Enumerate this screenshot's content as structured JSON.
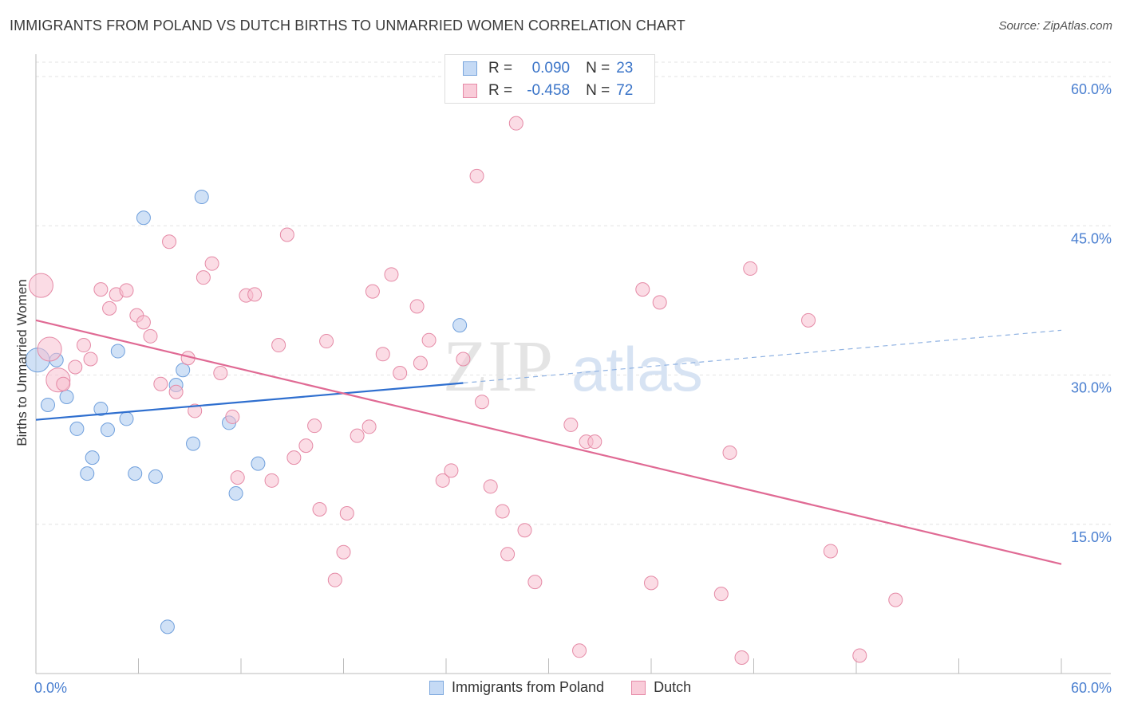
{
  "header": {
    "title": "IMMIGRANTS FROM POLAND VS DUTCH BIRTHS TO UNMARRIED WOMEN CORRELATION CHART",
    "source": "Source: ZipAtlas.com"
  },
  "stats": {
    "r_label": "R =",
    "n_label": "N =",
    "rows": [
      {
        "r": "0.090",
        "n": "23"
      },
      {
        "r": "-0.458",
        "n": "72"
      }
    ]
  },
  "watermark": {
    "part1": "ZIP",
    "part2": "atlas"
  },
  "chart_data": {
    "type": "scatter",
    "title": "IMMIGRANTS FROM POLAND VS DUTCH BIRTHS TO UNMARRIED WOMEN CORRELATION CHART",
    "xlabel": "",
    "ylabel": "Births to Unmarried Women",
    "xlim": [
      0,
      60
    ],
    "ylim": [
      0,
      60
    ],
    "x_tick_labels": [
      "0.0%",
      "60.0%"
    ],
    "y_ticks": [
      15,
      30,
      45,
      60
    ],
    "y_tick_labels": [
      "15.0%",
      "30.0%",
      "45.0%",
      "60.0%"
    ],
    "grid": true,
    "legend_position": "bottom",
    "series": [
      {
        "name": "Immigrants from Poland",
        "color": "#a9c8ef",
        "stroke": "#6f9fdc",
        "line_color": "#2f6fcf",
        "trend": {
          "x": [
            0,
            25
          ],
          "y": [
            25.5,
            29.2
          ],
          "dashed_to_x": 60,
          "dashed_y": 34.5
        },
        "points": [
          {
            "x": 0.1,
            "y": 31.5,
            "big": true
          },
          {
            "x": 1.2,
            "y": 31.5
          },
          {
            "x": 0.7,
            "y": 27.0
          },
          {
            "x": 1.8,
            "y": 27.8
          },
          {
            "x": 2.4,
            "y": 24.6
          },
          {
            "x": 3.0,
            "y": 20.1
          },
          {
            "x": 3.3,
            "y": 21.7
          },
          {
            "x": 3.8,
            "y": 26.6
          },
          {
            "x": 4.2,
            "y": 24.5
          },
          {
            "x": 4.8,
            "y": 32.4
          },
          {
            "x": 5.3,
            "y": 25.6
          },
          {
            "x": 5.8,
            "y": 20.1
          },
          {
            "x": 6.3,
            "y": 45.8
          },
          {
            "x": 7.0,
            "y": 19.8
          },
          {
            "x": 8.2,
            "y": 29.0
          },
          {
            "x": 8.6,
            "y": 30.5
          },
          {
            "x": 9.2,
            "y": 23.1
          },
          {
            "x": 9.7,
            "y": 47.9
          },
          {
            "x": 11.3,
            "y": 25.2
          },
          {
            "x": 11.7,
            "y": 18.1
          },
          {
            "x": 13.0,
            "y": 21.1
          },
          {
            "x": 7.7,
            "y": 4.7
          },
          {
            "x": 24.8,
            "y": 35.0
          }
        ]
      },
      {
        "name": "Dutch",
        "color": "#f7c0d0",
        "stroke": "#e58aa6",
        "line_color": "#e06a94",
        "trend": {
          "x": [
            0,
            60
          ],
          "y": [
            35.5,
            11.0
          ]
        },
        "points": [
          {
            "x": 0.3,
            "y": 39.0,
            "big": true
          },
          {
            "x": 0.8,
            "y": 32.6,
            "big": true
          },
          {
            "x": 1.3,
            "y": 29.5,
            "big": true
          },
          {
            "x": 1.6,
            "y": 29.1
          },
          {
            "x": 2.3,
            "y": 30.8
          },
          {
            "x": 2.8,
            "y": 33.0
          },
          {
            "x": 3.2,
            "y": 31.6
          },
          {
            "x": 3.8,
            "y": 38.6
          },
          {
            "x": 4.3,
            "y": 36.7
          },
          {
            "x": 4.7,
            "y": 38.1
          },
          {
            "x": 5.3,
            "y": 38.5
          },
          {
            "x": 5.9,
            "y": 36.0
          },
          {
            "x": 6.3,
            "y": 35.3
          },
          {
            "x": 6.7,
            "y": 33.9
          },
          {
            "x": 7.3,
            "y": 29.1
          },
          {
            "x": 7.8,
            "y": 43.4
          },
          {
            "x": 8.2,
            "y": 28.3
          },
          {
            "x": 8.9,
            "y": 31.7
          },
          {
            "x": 9.3,
            "y": 26.4
          },
          {
            "x": 9.8,
            "y": 39.8
          },
          {
            "x": 10.3,
            "y": 41.2
          },
          {
            "x": 10.8,
            "y": 30.2
          },
          {
            "x": 11.5,
            "y": 25.8
          },
          {
            "x": 11.8,
            "y": 19.7
          },
          {
            "x": 12.3,
            "y": 38.0
          },
          {
            "x": 12.8,
            "y": 38.1
          },
          {
            "x": 13.8,
            "y": 19.4
          },
          {
            "x": 14.2,
            "y": 33.0
          },
          {
            "x": 14.7,
            "y": 44.1
          },
          {
            "x": 15.1,
            "y": 21.7
          },
          {
            "x": 15.8,
            "y": 22.9
          },
          {
            "x": 16.3,
            "y": 24.9
          },
          {
            "x": 16.6,
            "y": 16.5
          },
          {
            "x": 17.0,
            "y": 33.4
          },
          {
            "x": 17.5,
            "y": 9.4
          },
          {
            "x": 18.0,
            "y": 12.2
          },
          {
            "x": 18.2,
            "y": 16.1
          },
          {
            "x": 18.8,
            "y": 23.9
          },
          {
            "x": 19.5,
            "y": 24.8
          },
          {
            "x": 19.7,
            "y": 38.4
          },
          {
            "x": 20.3,
            "y": 32.1
          },
          {
            "x": 20.8,
            "y": 40.1
          },
          {
            "x": 21.3,
            "y": 30.2
          },
          {
            "x": 22.3,
            "y": 36.9
          },
          {
            "x": 22.5,
            "y": 31.2
          },
          {
            "x": 23.0,
            "y": 33.5
          },
          {
            "x": 23.8,
            "y": 19.4
          },
          {
            "x": 24.3,
            "y": 20.4
          },
          {
            "x": 25.0,
            "y": 31.6
          },
          {
            "x": 25.8,
            "y": 50.0
          },
          {
            "x": 26.1,
            "y": 27.3
          },
          {
            "x": 26.6,
            "y": 18.8
          },
          {
            "x": 27.3,
            "y": 16.3
          },
          {
            "x": 27.6,
            "y": 12.0
          },
          {
            "x": 28.1,
            "y": 55.3
          },
          {
            "x": 28.6,
            "y": 14.4
          },
          {
            "x": 29.2,
            "y": 9.2
          },
          {
            "x": 31.3,
            "y": 25.0
          },
          {
            "x": 31.8,
            "y": 2.3
          },
          {
            "x": 32.2,
            "y": 23.3
          },
          {
            "x": 32.7,
            "y": 23.3
          },
          {
            "x": 35.5,
            "y": 38.6
          },
          {
            "x": 36.0,
            "y": 9.1
          },
          {
            "x": 36.5,
            "y": 37.3
          },
          {
            "x": 40.1,
            "y": 8.0
          },
          {
            "x": 40.6,
            "y": 22.2
          },
          {
            "x": 41.3,
            "y": 1.6
          },
          {
            "x": 41.8,
            "y": 40.7
          },
          {
            "x": 45.2,
            "y": 35.5
          },
          {
            "x": 46.5,
            "y": 12.3
          },
          {
            "x": 48.2,
            "y": 1.8
          },
          {
            "x": 50.3,
            "y": 7.4
          }
        ]
      }
    ]
  }
}
